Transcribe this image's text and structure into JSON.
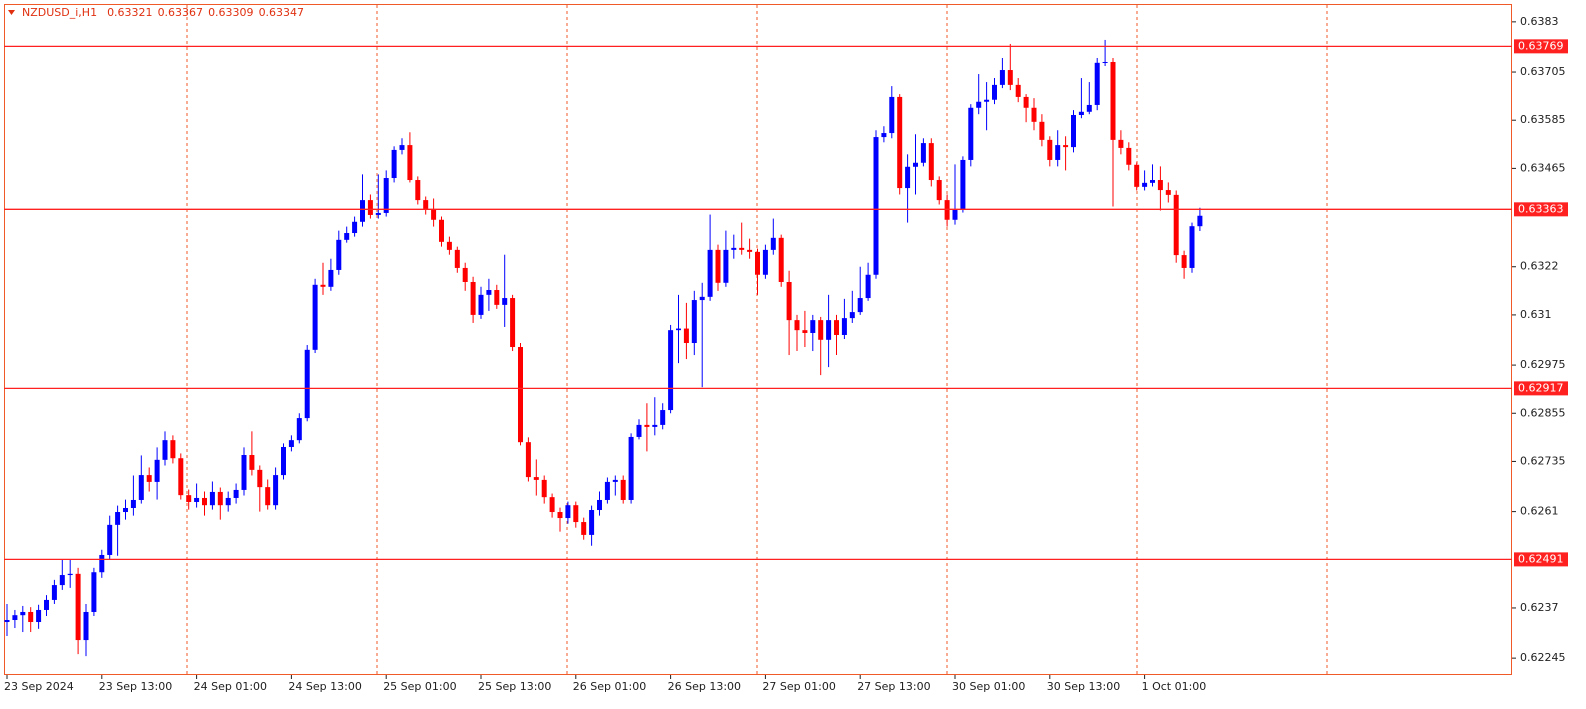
{
  "chart_data": {
    "type": "candlestick",
    "title": "NZDUSD_i,H1",
    "up_color": "#0000ff",
    "down_color": "#ff0000",
    "level_color": "#ff2020",
    "ylim": [
      0.62203,
      0.63872
    ],
    "yticks": [
      0.6383,
      0.63705,
      0.63585,
      0.63465,
      0.6322,
      0.631,
      0.62975,
      0.62855,
      0.62735,
      0.6261,
      0.6237,
      0.62245
    ],
    "levels": [
      0.63769,
      0.63363,
      0.62917,
      0.62491
    ],
    "categories": [
      "23 Sep 2024",
      null,
      null,
      null,
      null,
      null,
      null,
      null,
      null,
      null,
      null,
      null,
      "23 Sep 13:00",
      null,
      null,
      null,
      null,
      null,
      null,
      null,
      null,
      null,
      null,
      null,
      "24 Sep 01:00",
      null,
      null,
      null,
      null,
      null,
      null,
      null,
      null,
      null,
      null,
      null,
      "24 Sep 13:00",
      null,
      null,
      null,
      null,
      null,
      null,
      null,
      null,
      null,
      null,
      null,
      "25 Sep 01:00",
      null,
      null,
      null,
      null,
      null,
      null,
      null,
      null,
      null,
      null,
      null,
      "25 Sep 13:00",
      null,
      null,
      null,
      null,
      null,
      null,
      null,
      null,
      null,
      null,
      null,
      "26 Sep 01:00",
      null,
      null,
      null,
      null,
      null,
      null,
      null,
      null,
      null,
      null,
      null,
      "26 Sep 13:00",
      null,
      null,
      null,
      null,
      null,
      null,
      null,
      null,
      null,
      null,
      null,
      "27 Sep 01:00",
      null,
      null,
      null,
      null,
      null,
      null,
      null,
      null,
      null,
      null,
      null,
      "27 Sep 13:00",
      null,
      null,
      null,
      null,
      null,
      null,
      null,
      null,
      null,
      null,
      null,
      "30 Sep 01:00",
      null,
      null,
      null,
      null,
      null,
      null,
      null,
      null,
      null,
      null,
      null,
      "30 Sep 13:00",
      null,
      null,
      null,
      null,
      null,
      null,
      null,
      null,
      null,
      null,
      null,
      "1 Oct 01:00",
      null,
      null,
      null,
      null,
      null,
      null,
      null
    ],
    "ohlc": [
      [
        0.62335,
        0.6238,
        0.623,
        0.6234
      ],
      [
        0.6234,
        0.62365,
        0.6232,
        0.62352
      ],
      [
        0.62352,
        0.62375,
        0.6231,
        0.6236
      ],
      [
        0.6236,
        0.62372,
        0.6231,
        0.62335
      ],
      [
        0.62335,
        0.62378,
        0.62318,
        0.62365
      ],
      [
        0.62365,
        0.62402,
        0.6235,
        0.6239
      ],
      [
        0.6239,
        0.6244,
        0.6238,
        0.62427
      ],
      [
        0.62427,
        0.6249,
        0.62415,
        0.62452
      ],
      [
        0.62452,
        0.6249,
        0.6242,
        0.62455
      ],
      [
        0.62455,
        0.6247,
        0.62255,
        0.6229
      ],
      [
        0.6229,
        0.6238,
        0.6225,
        0.6236
      ],
      [
        0.6236,
        0.6247,
        0.6235,
        0.62459
      ],
      [
        0.62459,
        0.62515,
        0.62445,
        0.62502
      ],
      [
        0.62502,
        0.626,
        0.6249,
        0.62577
      ],
      [
        0.62577,
        0.62625,
        0.625,
        0.62609
      ],
      [
        0.62609,
        0.6264,
        0.6259,
        0.62619
      ],
      [
        0.62619,
        0.627,
        0.626,
        0.62639
      ],
      [
        0.62639,
        0.6275,
        0.6263,
        0.62701
      ],
      [
        0.62701,
        0.6272,
        0.6266,
        0.62684
      ],
      [
        0.62684,
        0.6277,
        0.6264,
        0.62739
      ],
      [
        0.62739,
        0.6281,
        0.62725,
        0.62788
      ],
      [
        0.62788,
        0.628,
        0.6273,
        0.62743
      ],
      [
        0.62743,
        0.62755,
        0.6264,
        0.62651
      ],
      [
        0.62651,
        0.62665,
        0.62615,
        0.62634
      ],
      [
        0.62634,
        0.6268,
        0.6262,
        0.62644
      ],
      [
        0.62644,
        0.6266,
        0.626,
        0.62626
      ],
      [
        0.62626,
        0.62685,
        0.62615,
        0.62659
      ],
      [
        0.62659,
        0.6267,
        0.6259,
        0.62626
      ],
      [
        0.62626,
        0.6266,
        0.6261,
        0.62644
      ],
      [
        0.62644,
        0.6268,
        0.6263,
        0.62664
      ],
      [
        0.62664,
        0.6277,
        0.6265,
        0.62751
      ],
      [
        0.62751,
        0.6281,
        0.627,
        0.62714
      ],
      [
        0.62714,
        0.62725,
        0.6261,
        0.62671
      ],
      [
        0.62671,
        0.6269,
        0.62615,
        0.62626
      ],
      [
        0.62626,
        0.6272,
        0.62615,
        0.62701
      ],
      [
        0.62701,
        0.6278,
        0.6269,
        0.62771
      ],
      [
        0.62771,
        0.628,
        0.6276,
        0.62788
      ],
      [
        0.62788,
        0.62855,
        0.6278,
        0.62843
      ],
      [
        0.62843,
        0.63025,
        0.62835,
        0.63013
      ],
      [
        0.63013,
        0.6319,
        0.63005,
        0.63175
      ],
      [
        0.63175,
        0.6323,
        0.6315,
        0.6317
      ],
      [
        0.6317,
        0.6324,
        0.6316,
        0.63212
      ],
      [
        0.63212,
        0.6331,
        0.632,
        0.63287
      ],
      [
        0.63287,
        0.6332,
        0.6328,
        0.63304
      ],
      [
        0.63304,
        0.63345,
        0.63295,
        0.63332
      ],
      [
        0.63332,
        0.6345,
        0.6332,
        0.63386
      ],
      [
        0.63386,
        0.634,
        0.6334,
        0.63349
      ],
      [
        0.63349,
        0.6345,
        0.6334,
        0.63354
      ],
      [
        0.63354,
        0.6346,
        0.63345,
        0.63441
      ],
      [
        0.63441,
        0.6352,
        0.6343,
        0.63511
      ],
      [
        0.63511,
        0.6354,
        0.635,
        0.63523
      ],
      [
        0.63523,
        0.63555,
        0.6343,
        0.63436
      ],
      [
        0.63436,
        0.63445,
        0.63375,
        0.63386
      ],
      [
        0.63386,
        0.63395,
        0.6335,
        0.63362
      ],
      [
        0.63362,
        0.6339,
        0.6332,
        0.63337
      ],
      [
        0.63337,
        0.63345,
        0.6327,
        0.63282
      ],
      [
        0.63282,
        0.63295,
        0.6325,
        0.63262
      ],
      [
        0.63262,
        0.6327,
        0.63205,
        0.63217
      ],
      [
        0.63217,
        0.6323,
        0.6316,
        0.63182
      ],
      [
        0.63182,
        0.63195,
        0.6308,
        0.631
      ],
      [
        0.631,
        0.6317,
        0.6309,
        0.6315
      ],
      [
        0.6315,
        0.6319,
        0.6311,
        0.63162
      ],
      [
        0.63162,
        0.63175,
        0.63115,
        0.63125
      ],
      [
        0.63125,
        0.6325,
        0.6307,
        0.63142
      ],
      [
        0.63142,
        0.6315,
        0.6301,
        0.6302
      ],
      [
        0.6302,
        0.6303,
        0.62775,
        0.62783
      ],
      [
        0.62783,
        0.62795,
        0.62685,
        0.62696
      ],
      [
        0.62696,
        0.6274,
        0.6265,
        0.62689
      ],
      [
        0.62689,
        0.627,
        0.6263,
        0.62646
      ],
      [
        0.62646,
        0.62655,
        0.62595,
        0.62609
      ],
      [
        0.62609,
        0.6262,
        0.6256,
        0.62594
      ],
      [
        0.62594,
        0.62635,
        0.6258,
        0.62626
      ],
      [
        0.62626,
        0.62635,
        0.6257,
        0.62584
      ],
      [
        0.62584,
        0.62595,
        0.6254,
        0.62552
      ],
      [
        0.62552,
        0.62625,
        0.62525,
        0.62614
      ],
      [
        0.62614,
        0.6266,
        0.626,
        0.62639
      ],
      [
        0.62639,
        0.62695,
        0.6263,
        0.62684
      ],
      [
        0.62684,
        0.627,
        0.6265,
        0.62689
      ],
      [
        0.62689,
        0.627,
        0.6263,
        0.62639
      ],
      [
        0.62639,
        0.62805,
        0.6263,
        0.62796
      ],
      [
        0.62796,
        0.6284,
        0.6279,
        0.62826
      ],
      [
        0.62826,
        0.6288,
        0.6276,
        0.62821
      ],
      [
        0.62821,
        0.62895,
        0.628,
        0.62826
      ],
      [
        0.62826,
        0.6288,
        0.62815,
        0.62863
      ],
      [
        0.62863,
        0.63075,
        0.62855,
        0.63062
      ],
      [
        0.63062,
        0.6315,
        0.6298,
        0.63066
      ],
      [
        0.63066,
        0.6313,
        0.6299,
        0.6303
      ],
      [
        0.6303,
        0.6316,
        0.63,
        0.63137
      ],
      [
        0.63137,
        0.6318,
        0.6292,
        0.63145
      ],
      [
        0.63145,
        0.6335,
        0.63135,
        0.63262
      ],
      [
        0.63262,
        0.63275,
        0.6316,
        0.6318
      ],
      [
        0.6318,
        0.6331,
        0.6317,
        0.63262
      ],
      [
        0.63262,
        0.633,
        0.6324,
        0.63267
      ],
      [
        0.63267,
        0.6333,
        0.6325,
        0.63262
      ],
      [
        0.63262,
        0.6329,
        0.6324,
        0.63257
      ],
      [
        0.63257,
        0.63265,
        0.6315,
        0.632
      ],
      [
        0.632,
        0.63275,
        0.6319,
        0.63262
      ],
      [
        0.63262,
        0.6334,
        0.6325,
        0.63292
      ],
      [
        0.63292,
        0.633,
        0.6317,
        0.63182
      ],
      [
        0.63182,
        0.6321,
        0.63,
        0.63087
      ],
      [
        0.63087,
        0.631,
        0.6301,
        0.63062
      ],
      [
        0.63062,
        0.6311,
        0.6302,
        0.63055
      ],
      [
        0.63055,
        0.631,
        0.6301,
        0.63087
      ],
      [
        0.63087,
        0.63095,
        0.6295,
        0.63038
      ],
      [
        0.63038,
        0.6315,
        0.6297,
        0.63087
      ],
      [
        0.63087,
        0.631,
        0.63,
        0.6305
      ],
      [
        0.6305,
        0.6314,
        0.6304,
        0.63092
      ],
      [
        0.63092,
        0.6316,
        0.6308,
        0.63107
      ],
      [
        0.63107,
        0.6322,
        0.631,
        0.63142
      ],
      [
        0.63142,
        0.6323,
        0.63135,
        0.632
      ],
      [
        0.632,
        0.6356,
        0.6319,
        0.63543
      ],
      [
        0.63543,
        0.6357,
        0.6353,
        0.63553
      ],
      [
        0.63553,
        0.6367,
        0.6354,
        0.63643
      ],
      [
        0.63643,
        0.6365,
        0.634,
        0.63416
      ],
      [
        0.63416,
        0.635,
        0.6333,
        0.63469
      ],
      [
        0.63469,
        0.6355,
        0.634,
        0.63479
      ],
      [
        0.63479,
        0.6354,
        0.6347,
        0.63528
      ],
      [
        0.63528,
        0.6354,
        0.6342,
        0.63436
      ],
      [
        0.63436,
        0.63445,
        0.63375,
        0.63386
      ],
      [
        0.63386,
        0.634,
        0.6332,
        0.63337
      ],
      [
        0.63337,
        0.63475,
        0.63325,
        0.63362
      ],
      [
        0.63362,
        0.63495,
        0.63355,
        0.63486
      ],
      [
        0.63486,
        0.63625,
        0.6347,
        0.63616
      ],
      [
        0.63616,
        0.637,
        0.636,
        0.63631
      ],
      [
        0.63631,
        0.6368,
        0.6356,
        0.63636
      ],
      [
        0.63636,
        0.6369,
        0.63625,
        0.63673
      ],
      [
        0.63673,
        0.6374,
        0.63665,
        0.6371
      ],
      [
        0.6371,
        0.63775,
        0.6366,
        0.63673
      ],
      [
        0.63673,
        0.6369,
        0.6363,
        0.63643
      ],
      [
        0.63643,
        0.6365,
        0.6358,
        0.63616
      ],
      [
        0.63616,
        0.6364,
        0.6356,
        0.63581
      ],
      [
        0.63581,
        0.636,
        0.6352,
        0.63536
      ],
      [
        0.63536,
        0.63545,
        0.6347,
        0.63486
      ],
      [
        0.63486,
        0.6356,
        0.6347,
        0.63523
      ],
      [
        0.63523,
        0.63545,
        0.6346,
        0.63518
      ],
      [
        0.63518,
        0.6361,
        0.63505,
        0.63598
      ],
      [
        0.63598,
        0.6369,
        0.6359,
        0.63606
      ],
      [
        0.63606,
        0.6368,
        0.636,
        0.63623
      ],
      [
        0.63623,
        0.6374,
        0.6361,
        0.63728
      ],
      [
        0.63728,
        0.63785,
        0.6372,
        0.6373
      ],
      [
        0.6373,
        0.6374,
        0.6337,
        0.63536
      ],
      [
        0.63536,
        0.6356,
        0.635,
        0.63516
      ],
      [
        0.63516,
        0.6353,
        0.6346,
        0.63474
      ],
      [
        0.63474,
        0.6348,
        0.6341,
        0.63419
      ],
      [
        0.63419,
        0.6346,
        0.6341,
        0.63429
      ],
      [
        0.63429,
        0.63475,
        0.6342,
        0.63436
      ],
      [
        0.63436,
        0.6347,
        0.6336,
        0.63411
      ],
      [
        0.63411,
        0.6343,
        0.6338,
        0.63399
      ],
      [
        0.63399,
        0.6341,
        0.6323,
        0.63249
      ],
      [
        0.63249,
        0.6326,
        0.6319,
        0.63217
      ],
      [
        0.63217,
        0.6333,
        0.63205,
        0.63321
      ],
      [
        0.63321,
        0.63367,
        0.63309,
        0.63347
      ]
    ]
  }
}
